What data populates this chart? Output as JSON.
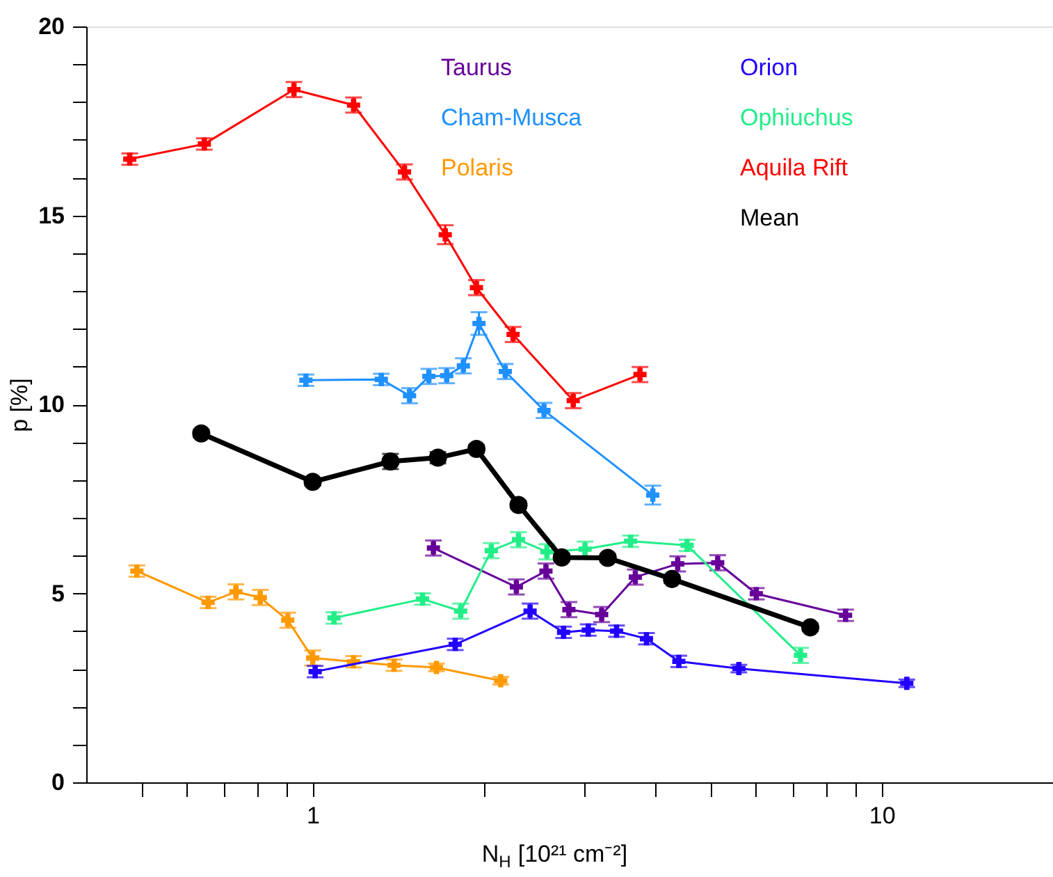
{
  "chart_data": {
    "type": "line",
    "xlabel": "N$_{H}$ [10²¹ cm⁻²]",
    "ylabel": "p [%]",
    "log": "x",
    "xlim": [
      0.4,
      20
    ],
    "ylim": [
      0,
      20
    ],
    "xticks": [
      {
        "value": 0.5,
        "label": null
      },
      {
        "value": 0.6,
        "label": null
      },
      {
        "value": 0.7,
        "label": null
      },
      {
        "value": 0.8,
        "label": null
      },
      {
        "value": 0.9,
        "label": null
      },
      1,
      {
        "value": 2,
        "label": null
      },
      {
        "value": 3,
        "label": null
      },
      {
        "value": 4,
        "label": null
      },
      {
        "value": 5,
        "label": null
      },
      {
        "value": 6,
        "label": null
      },
      {
        "value": 7,
        "label": null
      },
      {
        "value": 8,
        "label": null
      },
      {
        "value": 9,
        "label": null
      },
      10
    ],
    "yticks": [
      0,
      {
        "value": 1,
        "label": null
      },
      {
        "value": 2,
        "label": null
      },
      {
        "value": 3,
        "label": null
      },
      {
        "value": 4,
        "label": null
      },
      5,
      {
        "value": 6,
        "label": null
      },
      {
        "value": 7,
        "label": null
      },
      {
        "value": 8,
        "label": null
      },
      {
        "value": 9,
        "label": null
      },
      10,
      {
        "value": 11,
        "label": null
      },
      {
        "value": 12,
        "label": null
      },
      {
        "value": 13,
        "label": null
      },
      {
        "value": 14,
        "label": null
      },
      15,
      {
        "value": 16,
        "label": null
      },
      {
        "value": 17,
        "label": null
      },
      {
        "value": 18,
        "label": null
      },
      {
        "value": 19,
        "label": null
      },
      20
    ],
    "grid": false,
    "legend": "top right",
    "line_style": "solid",
    "series": [
      {
        "name": "Taurus",
        "color": "#660099",
        "marker": "cross",
        "x": [
          1.63,
          2.28,
          2.57,
          2.82,
          3.22,
          3.69,
          4.38,
          5.15,
          6.02,
          8.64
        ],
        "values": [
          6.2,
          5.17,
          5.59,
          4.57,
          4.44,
          5.43,
          5.78,
          5.81,
          4.99,
          4.42
        ],
        "errors": [
          0.2,
          0.2,
          0.2,
          0.2,
          0.2,
          0.2,
          0.2,
          0.2,
          0.15,
          0.15
        ]
      },
      {
        "name": "Cham-Musca",
        "color": "#1e90ff",
        "marker": "cross",
        "x": [
          0.973,
          1.32,
          1.48,
          1.6,
          1.72,
          1.84,
          1.96,
          2.18,
          2.55,
          3.96
        ],
        "values": [
          10.64,
          10.66,
          10.23,
          10.74,
          10.76,
          11.02,
          12.14,
          10.87,
          9.84,
          7.6
        ],
        "errors": [
          0.15,
          0.15,
          0.2,
          0.2,
          0.2,
          0.2,
          0.3,
          0.2,
          0.2,
          0.25
        ]
      },
      {
        "name": "Polaris",
        "color": "#ff9900",
        "marker": "cross",
        "x": [
          0.491,
          0.655,
          0.733,
          0.809,
          0.904,
          1.0,
          1.18,
          1.39,
          1.65,
          2.14
        ],
        "values": [
          5.59,
          4.76,
          5.04,
          4.89,
          4.29,
          3.29,
          3.19,
          3.1,
          3.04,
          2.69
        ],
        "errors": [
          0.15,
          0.15,
          0.2,
          0.2,
          0.2,
          0.2,
          0.15,
          0.15,
          0.1,
          0.1
        ]
      },
      {
        "name": "Orion",
        "color": "#2200ff",
        "marker": "cross",
        "x": [
          1.01,
          1.78,
          2.41,
          2.76,
          3.05,
          3.42,
          3.86,
          4.4,
          5.61,
          11.07
        ],
        "values": [
          2.93,
          3.65,
          4.53,
          3.97,
          4.03,
          4.0,
          3.8,
          3.2,
          3.01,
          2.62
        ],
        "errors": [
          0.15,
          0.15,
          0.2,
          0.15,
          0.15,
          0.15,
          0.15,
          0.15,
          0.1,
          0.1
        ]
      },
      {
        "name": "Ophiuchus",
        "color": "#22ee88",
        "marker": "cross",
        "x": [
          1.09,
          1.56,
          1.82,
          2.06,
          2.3,
          2.58,
          3.01,
          3.62,
          4.55,
          7.2
        ],
        "values": [
          4.35,
          4.85,
          4.53,
          6.13,
          6.42,
          6.1,
          6.17,
          6.38,
          6.27,
          3.36
        ],
        "errors": [
          0.15,
          0.15,
          0.2,
          0.2,
          0.2,
          0.2,
          0.2,
          0.15,
          0.15,
          0.2
        ]
      },
      {
        "name": "Aquila Rift",
        "color": "#ff0000",
        "marker": "cross",
        "x": [
          0.477,
          0.645,
          0.927,
          1.18,
          1.45,
          1.71,
          1.94,
          2.25,
          2.87,
          3.76
        ],
        "values": [
          16.49,
          16.89,
          18.33,
          17.92,
          16.15,
          14.49,
          13.09,
          11.85,
          10.1,
          10.79
        ],
        "errors": [
          0.15,
          0.15,
          0.2,
          0.2,
          0.2,
          0.25,
          0.2,
          0.2,
          0.2,
          0.2
        ]
      },
      {
        "name": "Mean",
        "color": "#000000",
        "marker": "circle",
        "x": [
          0.637,
          1.0,
          1.37,
          1.66,
          1.94,
          2.3,
          2.74,
          3.3,
          4.28,
          7.49
        ],
        "values": [
          9.23,
          7.95,
          8.49,
          8.59,
          8.82,
          7.34,
          5.95,
          5.94,
          5.38,
          4.1
        ],
        "errors": [
          0.1,
          0.1,
          0.2,
          0.15,
          0.1,
          0.1,
          0.1,
          0.1,
          0.1,
          0.1
        ]
      }
    ]
  }
}
